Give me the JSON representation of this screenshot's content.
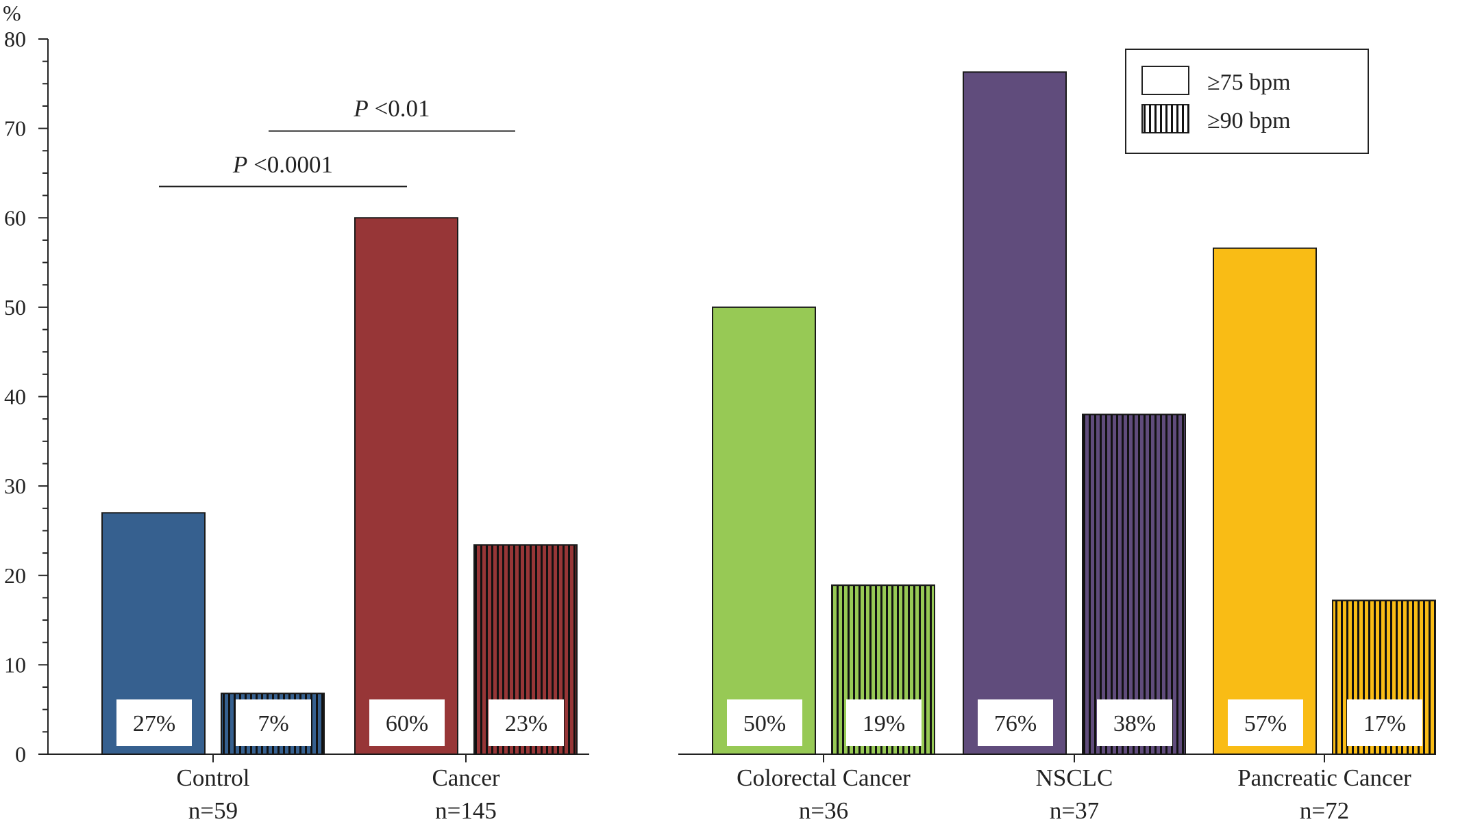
{
  "chart_data": {
    "type": "bar",
    "ylabel": "%",
    "ylim": [
      0,
      80
    ],
    "yticks": [
      "0",
      "10",
      "20",
      "30",
      "40",
      "50",
      "60",
      "70",
      "80"
    ],
    "legend": {
      "placement": "top-right",
      "entries": [
        {
          "label": "≥75 bpm",
          "pattern": "solid"
        },
        {
          "label": "≥90 bpm",
          "pattern": "vertical-stripes"
        }
      ]
    },
    "annotations": [
      {
        "text_p": "P",
        "text_rest": " <0.0001",
        "from": "Control",
        "to": "Cancer",
        "at": 63.5
      },
      {
        "text_p": "P",
        "text_rest": " <0.01",
        "from": "Control",
        "to": "Cancer",
        "at": 69.7
      }
    ],
    "groups": [
      {
        "name": "Control",
        "n": "n=59",
        "color": "#36608f",
        "values": [
          27,
          6.8
        ],
        "labels": [
          "27%",
          "7%"
        ]
      },
      {
        "name": "Cancer",
        "n": "n=145",
        "color": "#973637",
        "values": [
          60,
          23.4
        ],
        "labels": [
          "60%",
          "23%"
        ]
      },
      {
        "name": "Colorectal Cancer",
        "n": "n=36",
        "color": "#97c955",
        "values": [
          50,
          18.9
        ],
        "labels": [
          "50%",
          "19%"
        ]
      },
      {
        "name": "NSCLC",
        "n": "n=37",
        "color": "#604c7c",
        "values": [
          76.3,
          38
        ],
        "labels": [
          "76%",
          "38%"
        ]
      },
      {
        "name": "Pancreatic Cancer",
        "n": "n=72",
        "color": "#f9bc15",
        "values": [
          56.6,
          17.2
        ],
        "labels": [
          "57%",
          "17%"
        ]
      }
    ]
  }
}
